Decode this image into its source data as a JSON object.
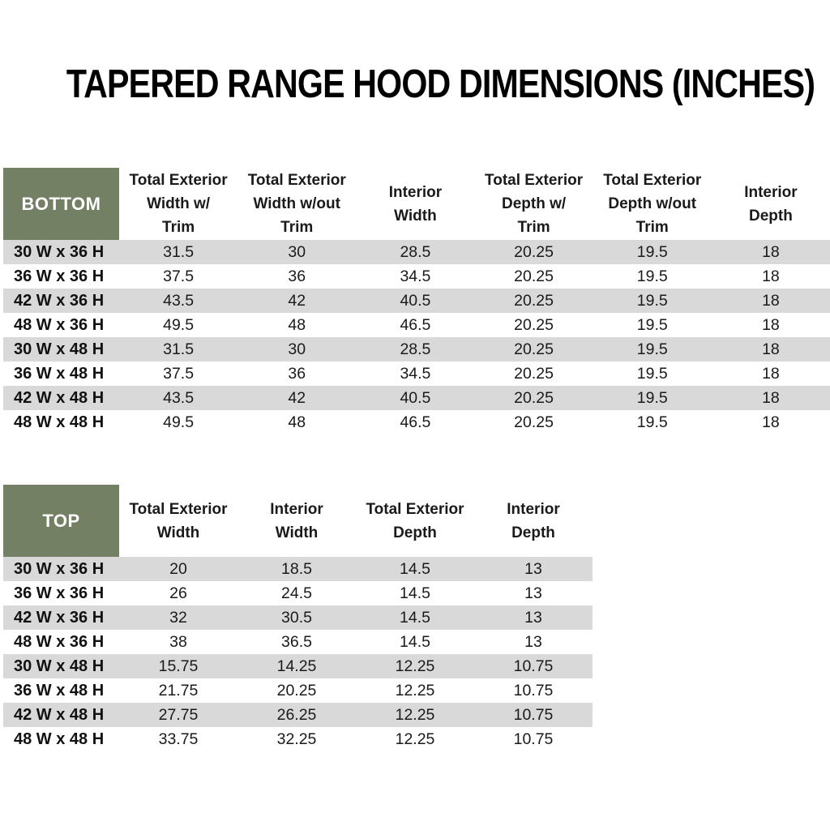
{
  "title": "TAPERED RANGE HOOD DIMENSIONS (INCHES)",
  "colors": {
    "header_green": "#738063",
    "stripe_gray": "#d9d9d9",
    "header_text": "#ffffff",
    "body_text": "#1a1a1a"
  },
  "bottom_table": {
    "label": "BOTTOM",
    "columns": [
      "Total Exterior\nWidth w/\nTrim",
      "Total Exterior\nWidth w/out\nTrim",
      "Interior\nWidth",
      "Total Exterior\nDepth w/\nTrim",
      "Total Exterior\nDepth w/out\nTrim",
      "Interior\nDepth"
    ],
    "rows": [
      {
        "label": "30 W x 36 H",
        "values": [
          "31.5",
          "30",
          "28.5",
          "20.25",
          "19.5",
          "18"
        ]
      },
      {
        "label": "36 W x 36 H",
        "values": [
          "37.5",
          "36",
          "34.5",
          "20.25",
          "19.5",
          "18"
        ]
      },
      {
        "label": "42 W x 36 H",
        "values": [
          "43.5",
          "42",
          "40.5",
          "20.25",
          "19.5",
          "18"
        ]
      },
      {
        "label": "48 W x 36 H",
        "values": [
          "49.5",
          "48",
          "46.5",
          "20.25",
          "19.5",
          "18"
        ]
      },
      {
        "label": "30 W x 48 H",
        "values": [
          "31.5",
          "30",
          "28.5",
          "20.25",
          "19.5",
          "18"
        ]
      },
      {
        "label": "36 W x 48 H",
        "values": [
          "37.5",
          "36",
          "34.5",
          "20.25",
          "19.5",
          "18"
        ]
      },
      {
        "label": "42 W x 48 H",
        "values": [
          "43.5",
          "42",
          "40.5",
          "20.25",
          "19.5",
          "18"
        ]
      },
      {
        "label": "48 W x 48 H",
        "values": [
          "49.5",
          "48",
          "46.5",
          "20.25",
          "19.5",
          "18"
        ]
      }
    ]
  },
  "top_table": {
    "label": "TOP",
    "columns": [
      "Total Exterior\nWidth",
      "Interior\nWidth",
      "Total Exterior\nDepth",
      "Interior\nDepth"
    ],
    "rows": [
      {
        "label": "30 W x 36 H",
        "values": [
          "20",
          "18.5",
          "14.5",
          "13"
        ]
      },
      {
        "label": "36 W x 36 H",
        "values": [
          "26",
          "24.5",
          "14.5",
          "13"
        ]
      },
      {
        "label": "42 W x 36 H",
        "values": [
          "32",
          "30.5",
          "14.5",
          "13"
        ]
      },
      {
        "label": "48 W x 36 H",
        "values": [
          "38",
          "36.5",
          "14.5",
          "13"
        ]
      },
      {
        "label": "30 W x 48 H",
        "values": [
          "15.75",
          "14.25",
          "12.25",
          "10.75"
        ]
      },
      {
        "label": "36 W x 48 H",
        "values": [
          "21.75",
          "20.25",
          "12.25",
          "10.75"
        ]
      },
      {
        "label": "42 W x 48 H",
        "values": [
          "27.75",
          "26.25",
          "12.25",
          "10.75"
        ]
      },
      {
        "label": "48 W x 48 H",
        "values": [
          "33.75",
          "32.25",
          "12.25",
          "10.75"
        ]
      }
    ]
  }
}
